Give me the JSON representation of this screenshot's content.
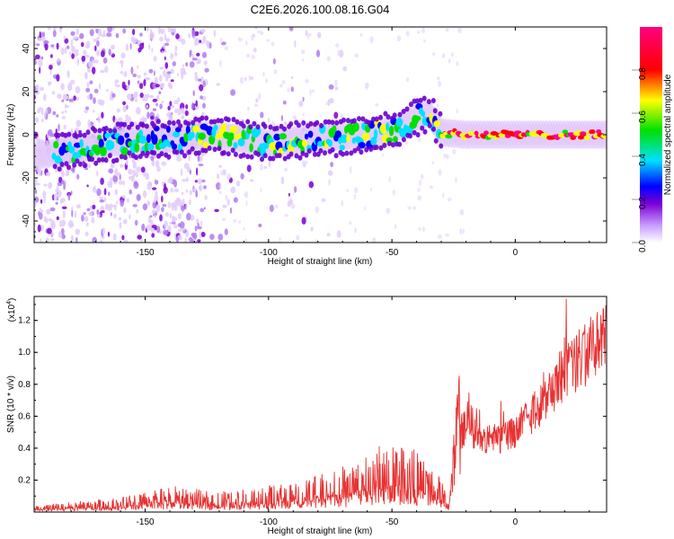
{
  "chart_data": [
    {
      "type": "heatmap",
      "title": "C2E6.2026.100.08.16.G04",
      "xlabel": "Height of straight line (km)",
      "ylabel": "Frequency (Hz)",
      "xlim": [
        -195,
        37
      ],
      "ylim": [
        -50,
        50
      ],
      "xticks": [
        -150,
        -100,
        -50,
        0
      ],
      "yticks": [
        -40,
        -20,
        0,
        20,
        40
      ],
      "colorbar": {
        "label": "Normalized spectral amplitude",
        "range": [
          0,
          1
        ],
        "ticks": [
          0.0,
          0.2,
          0.4,
          0.6,
          0.8
        ],
        "tick_labels": [
          "0.0",
          "0.2",
          "0.4",
          "0.6",
          "0.8"
        ],
        "colors": [
          "#ffffff",
          "#7b00d4",
          "#0000ff",
          "#00e0ff",
          "#00e000",
          "#ffff00",
          "#ff0000",
          "#ff0080"
        ]
      },
      "ridge": {
        "x": [
          -195,
          -185,
          -175,
          -165,
          -150,
          -140,
          -125,
          -110,
          -100,
          -85,
          -70,
          -60,
          -50,
          -45,
          -40,
          -35,
          -30,
          -20,
          -10,
          0,
          15,
          37
        ],
        "y": [
          -10,
          -8,
          -6,
          -4,
          -2,
          -2,
          0,
          -2,
          -4,
          -2,
          -1,
          0,
          2,
          5,
          8,
          10,
          1,
          0,
          0,
          0,
          0,
          0
        ]
      }
    },
    {
      "type": "line",
      "title": "",
      "xlabel": "Height of straight line (km)",
      "ylabel": "SNR (10 * v/v)",
      "y_scale_label": "(x10",
      "y_scale_exp": "4",
      "y_scale_close": ")",
      "xlim": [
        -195,
        37
      ],
      "ylim": [
        0,
        1.35
      ],
      "xticks": [
        -150,
        -100,
        -50,
        0
      ],
      "yticks": [
        0.2,
        0.4,
        0.6,
        0.8,
        1.0,
        1.2
      ],
      "tick_labels_y": [
        "0.2",
        "0.4",
        "0.6",
        "0.8",
        "1.0",
        "1.2"
      ],
      "series": [
        {
          "name": "SNR",
          "color": "#e83232",
          "x": [
            -195,
            -180,
            -165,
            -150,
            -140,
            -130,
            -120,
            -110,
            -100,
            -90,
            -80,
            -70,
            -60,
            -50,
            -45,
            -40,
            -35,
            -30,
            -27,
            -25,
            -22,
            -20,
            -15,
            -10,
            -5,
            0,
            5,
            10,
            15,
            20,
            25,
            30,
            37
          ],
          "y": [
            0.02,
            0.03,
            0.04,
            0.06,
            0.08,
            0.07,
            0.06,
            0.07,
            0.08,
            0.09,
            0.11,
            0.14,
            0.18,
            0.22,
            0.22,
            0.18,
            0.14,
            0.1,
            0.03,
            0.3,
            0.6,
            0.65,
            0.58,
            0.55,
            0.56,
            0.6,
            0.72,
            0.82,
            0.95,
            1.05,
            1.15,
            1.22,
            1.3
          ]
        }
      ]
    }
  ]
}
